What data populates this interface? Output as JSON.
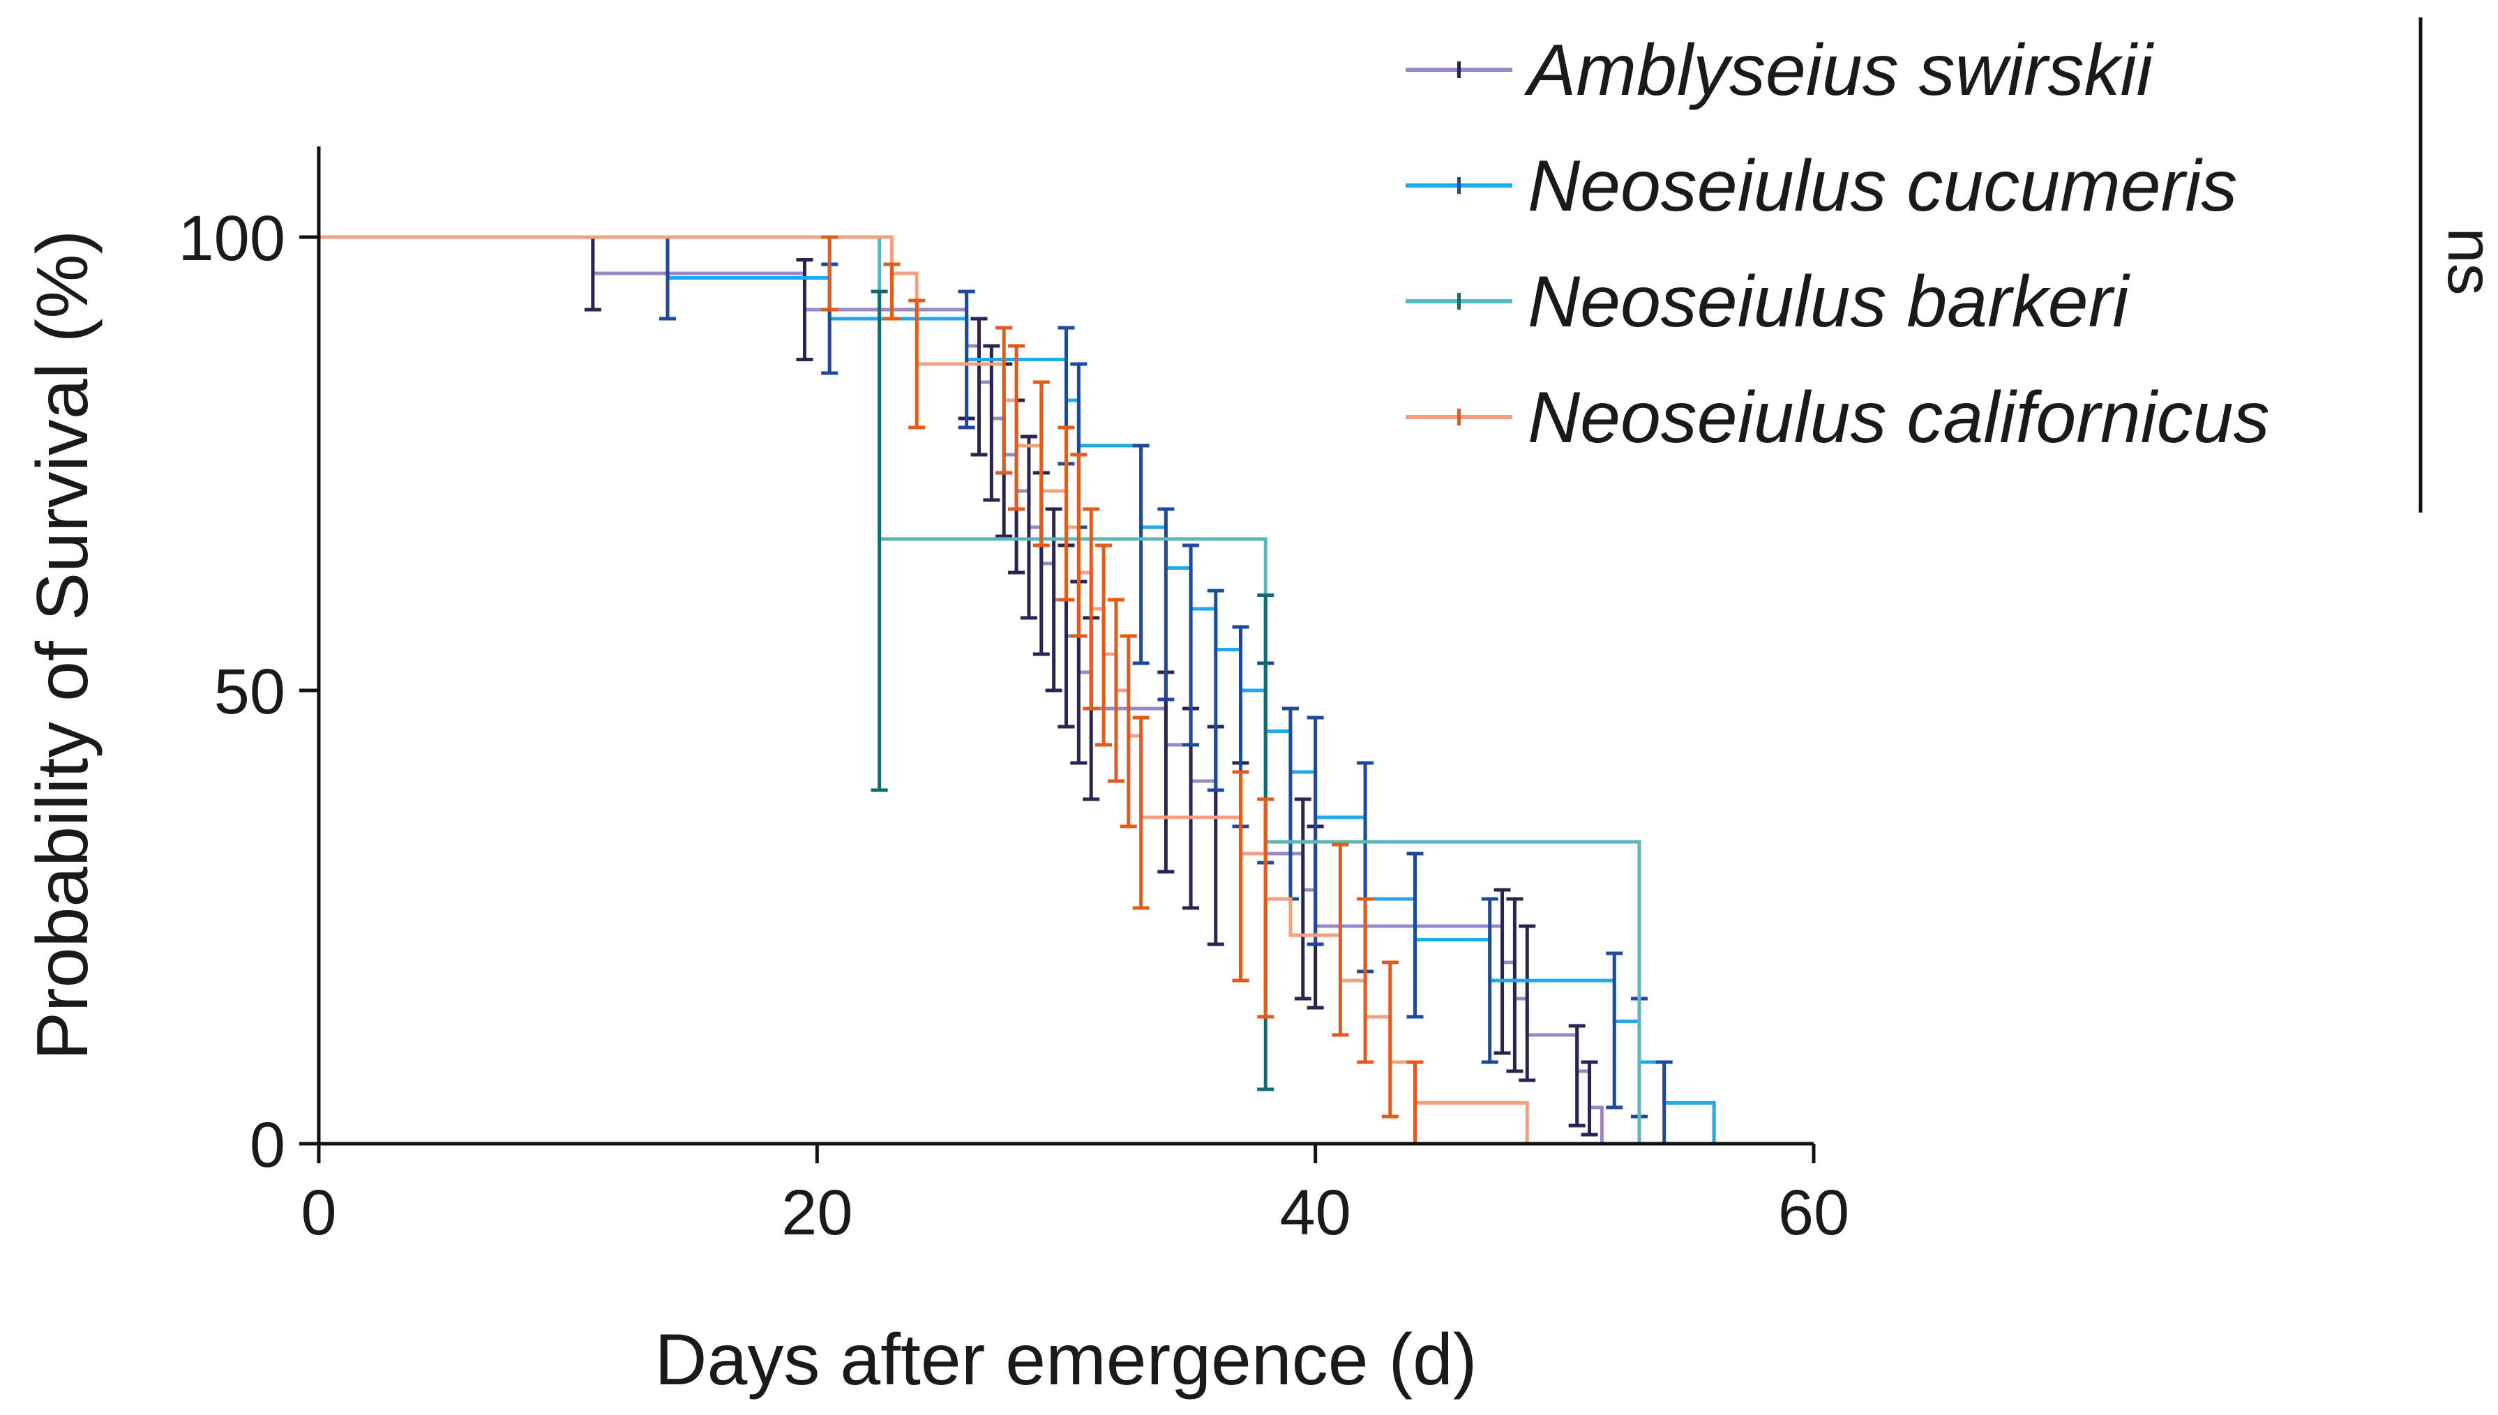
{
  "chart_data": {
    "type": "line",
    "subtype": "kaplan-meier survival step curves with error bars",
    "xlabel": "Days after emergence (d)",
    "ylabel": "Probability of Survival (%)",
    "xlim": [
      0,
      60
    ],
    "ylim": [
      0,
      110
    ],
    "x_ticks": [
      0,
      20,
      40,
      60
    ],
    "y_ticks": [
      0,
      50,
      100
    ],
    "legend_position": "top-right",
    "significance": "ns",
    "series": [
      {
        "name": "Amblyseius swirskii",
        "line_color": "#9b87c4",
        "bar_color": "#2a2550",
        "steps": [
          [
            0,
            100
          ],
          [
            11,
            96
          ],
          [
            19.5,
            92
          ],
          [
            26,
            88
          ],
          [
            26.5,
            84
          ],
          [
            27,
            80
          ],
          [
            27.5,
            76
          ],
          [
            28,
            72
          ],
          [
            28.5,
            68
          ],
          [
            29,
            64
          ],
          [
            29.5,
            60
          ],
          [
            30,
            56
          ],
          [
            30.5,
            52
          ],
          [
            31,
            48
          ],
          [
            34,
            44
          ],
          [
            35,
            40
          ],
          [
            36,
            36
          ],
          [
            37,
            32
          ],
          [
            39.5,
            28
          ],
          [
            40,
            24
          ],
          [
            47.5,
            20
          ],
          [
            48,
            16
          ],
          [
            48.5,
            12
          ],
          [
            50.5,
            8
          ],
          [
            51,
            4
          ],
          [
            51.5,
            0
          ]
        ],
        "errors": [
          [
            11,
            92,
            100
          ],
          [
            19.5,
            86.5,
            97.5
          ],
          [
            26,
            80,
            94
          ],
          [
            26.5,
            76,
            91
          ],
          [
            27,
            71,
            88
          ],
          [
            27.5,
            67,
            86
          ],
          [
            28,
            63,
            82
          ],
          [
            28.5,
            58,
            78
          ],
          [
            29,
            54,
            74
          ],
          [
            29.5,
            50,
            70
          ],
          [
            30,
            46,
            66
          ],
          [
            30.5,
            42,
            62
          ],
          [
            31,
            38,
            58
          ],
          [
            34,
            30,
            52
          ],
          [
            35,
            26,
            48
          ],
          [
            36,
            22,
            46
          ],
          [
            37,
            18,
            42
          ],
          [
            39.5,
            16,
            38
          ],
          [
            40,
            15,
            35
          ],
          [
            47.5,
            10,
            28
          ],
          [
            48,
            8,
            27
          ],
          [
            48.5,
            7,
            24
          ],
          [
            50.5,
            2,
            13
          ],
          [
            51,
            1,
            9
          ]
        ]
      },
      {
        "name": "Neoseiulus cucumeris",
        "line_color": "#1fa9e6",
        "bar_color": "#1f4a9c",
        "steps": [
          [
            0,
            100
          ],
          [
            14,
            95.5
          ],
          [
            20.5,
            91
          ],
          [
            26,
            86.5
          ],
          [
            30,
            82
          ],
          [
            30.5,
            77
          ],
          [
            33,
            68
          ],
          [
            34,
            63.5
          ],
          [
            35,
            59
          ],
          [
            36,
            54.5
          ],
          [
            37,
            50
          ],
          [
            38,
            45.5
          ],
          [
            39,
            41
          ],
          [
            40,
            36
          ],
          [
            42,
            27
          ],
          [
            44,
            22.5
          ],
          [
            47,
            18
          ],
          [
            52,
            13.5
          ],
          [
            53,
            9
          ],
          [
            54,
            4.5
          ],
          [
            56,
            0
          ]
        ],
        "errors": [
          [
            14,
            91,
            100
          ],
          [
            20.5,
            85,
            97
          ],
          [
            26,
            79,
            94
          ],
          [
            30,
            75,
            90
          ],
          [
            30.5,
            68,
            86
          ],
          [
            33,
            53,
            77
          ],
          [
            34,
            49,
            70
          ],
          [
            35,
            44,
            66
          ],
          [
            36,
            39,
            61
          ],
          [
            37,
            35,
            57
          ],
          [
            38,
            31,
            53
          ],
          [
            39,
            27,
            48
          ],
          [
            40,
            22,
            47
          ],
          [
            42,
            19,
            42
          ],
          [
            44,
            14,
            32
          ],
          [
            47,
            9,
            27
          ],
          [
            52,
            4,
            21
          ],
          [
            53,
            3,
            16
          ],
          [
            54,
            0,
            9
          ]
        ]
      },
      {
        "name": "Neoseiulus barkeri",
        "line_color": "#5bb7bc",
        "bar_color": "#116b70",
        "steps": [
          [
            0,
            100
          ],
          [
            22.5,
            66.7
          ],
          [
            38,
            33.3
          ],
          [
            53,
            0
          ]
        ],
        "errors": [
          [
            22.5,
            39,
            94
          ],
          [
            38,
            6,
            60.5
          ]
        ]
      },
      {
        "name": "Neoseiulus californicus",
        "line_color": "#f2a07f",
        "bar_color": "#e25a1c",
        "steps": [
          [
            0,
            100
          ],
          [
            23,
            96
          ],
          [
            24,
            86
          ],
          [
            27.5,
            82
          ],
          [
            28,
            77
          ],
          [
            29,
            72
          ],
          [
            30,
            68
          ],
          [
            30.5,
            63
          ],
          [
            31,
            59
          ],
          [
            31.5,
            54
          ],
          [
            32,
            50
          ],
          [
            32.5,
            45
          ],
          [
            33,
            36
          ],
          [
            37,
            32
          ],
          [
            38,
            27
          ],
          [
            39,
            23
          ],
          [
            41,
            18
          ],
          [
            42,
            14
          ],
          [
            43,
            9
          ],
          [
            44,
            4.5
          ],
          [
            48.5,
            0
          ]
        ],
        "errors": [
          [
            20.5,
            92,
            100
          ],
          [
            23,
            91,
            97
          ],
          [
            24,
            79,
            93
          ],
          [
            27.5,
            74,
            90
          ],
          [
            28,
            70,
            88
          ],
          [
            29,
            66,
            84
          ],
          [
            30,
            60,
            79
          ],
          [
            30.5,
            56,
            76
          ],
          [
            31,
            48,
            70
          ],
          [
            31.5,
            44,
            66
          ],
          [
            32,
            40,
            60
          ],
          [
            32.5,
            35,
            56
          ],
          [
            33,
            26,
            47
          ],
          [
            37,
            18,
            41
          ],
          [
            38,
            14,
            38
          ],
          [
            41,
            12,
            33
          ],
          [
            42,
            9,
            27
          ],
          [
            43,
            3,
            20
          ],
          [
            44,
            0,
            9
          ]
        ]
      }
    ]
  }
}
